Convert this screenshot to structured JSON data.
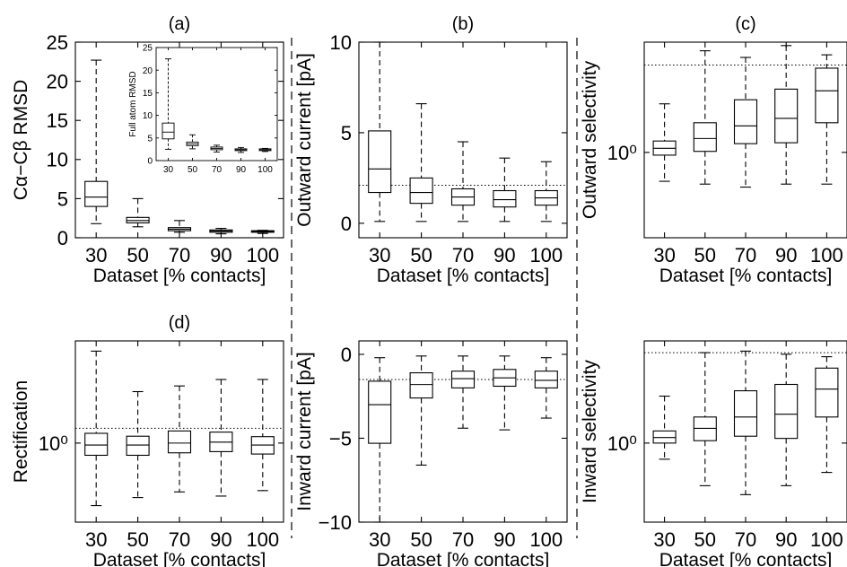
{
  "chart_data": [
    {
      "type": "box",
      "panel_label": "(a)",
      "xlabel": "Dataset [% contacts]",
      "ylabel": "Cα−Cβ RMSD",
      "categories": [
        "30",
        "50",
        "70",
        "90",
        "100"
      ],
      "ylim": [
        0,
        25
      ],
      "yticks": [
        0,
        5,
        10,
        15,
        20,
        25
      ],
      "boxes": [
        {
          "whislo": 1.8,
          "q1": 4.0,
          "med": 5.2,
          "q3": 7.2,
          "whishi": 22.7
        },
        {
          "whislo": 1.4,
          "q1": 1.9,
          "med": 2.2,
          "q3": 2.6,
          "whishi": 5.0
        },
        {
          "whislo": 0.7,
          "q1": 0.9,
          "med": 1.1,
          "q3": 1.3,
          "whishi": 2.2
        },
        {
          "whislo": 0.5,
          "q1": 0.7,
          "med": 0.85,
          "q3": 1.0,
          "whishi": 1.2
        },
        {
          "whislo": 0.55,
          "q1": 0.7,
          "med": 0.8,
          "q3": 0.9,
          "whishi": 0.95
        }
      ],
      "inset": {
        "ylabel": "Full atom RMSD",
        "categories": [
          "30",
          "50",
          "70",
          "90",
          "100"
        ],
        "ylim": [
          0,
          25
        ],
        "yticks": [
          0,
          5,
          10,
          15,
          20,
          25
        ],
        "boxes": [
          {
            "whislo": 2.5,
            "q1": 4.8,
            "med": 6.3,
            "q3": 8.3,
            "whishi": 22.5
          },
          {
            "whislo": 2.6,
            "q1": 3.3,
            "med": 3.7,
            "q3": 4.1,
            "whishi": 5.7
          },
          {
            "whislo": 1.9,
            "q1": 2.4,
            "med": 2.7,
            "q3": 3.0,
            "whishi": 3.4
          },
          {
            "whislo": 1.8,
            "q1": 2.2,
            "med": 2.4,
            "q3": 2.6,
            "whishi": 2.9
          },
          {
            "whislo": 2.0,
            "q1": 2.2,
            "med": 2.4,
            "q3": 2.6,
            "whishi": 2.7
          }
        ]
      }
    },
    {
      "type": "box",
      "panel_label": "(b)",
      "xlabel": "Dataset [% contacts]",
      "ylabel": "Outward current [pA]",
      "categories": [
        "30",
        "50",
        "70",
        "90",
        "100"
      ],
      "ylim": [
        -0.8,
        10
      ],
      "yticks": [
        0,
        5,
        10
      ],
      "reference_line": 2.1,
      "boxes": [
        {
          "whislo": 0.1,
          "q1": 1.7,
          "med": 3.0,
          "q3": 5.1,
          "whishi": 10.0
        },
        {
          "whislo": 0.1,
          "q1": 1.1,
          "med": 1.7,
          "q3": 2.5,
          "whishi": 6.6
        },
        {
          "whislo": 0.1,
          "q1": 1.0,
          "med": 1.45,
          "q3": 1.9,
          "whishi": 4.5
        },
        {
          "whislo": 0.1,
          "q1": 0.9,
          "med": 1.3,
          "q3": 1.8,
          "whishi": 3.6
        },
        {
          "whislo": 0.1,
          "q1": 1.0,
          "med": 1.4,
          "q3": 1.8,
          "whishi": 3.4
        }
      ]
    },
    {
      "type": "box",
      "panel_label": "(c)",
      "xlabel": "Dataset [% contacts]",
      "ylabel": "Outward selectivity",
      "yscale": "log",
      "categories": [
        "30",
        "50",
        "70",
        "90",
        "100"
      ],
      "ylim": [
        0.2,
        8
      ],
      "yticks": [
        1
      ],
      "yticklabels": [
        "10⁰"
      ],
      "reference_line": 5.2,
      "boxes": [
        {
          "whislo": 0.58,
          "q1": 0.95,
          "med": 1.08,
          "q3": 1.24,
          "whishi": 2.5
        },
        {
          "whislo": 0.55,
          "q1": 1.02,
          "med": 1.3,
          "q3": 1.75,
          "whishi": 6.8
        },
        {
          "whislo": 0.52,
          "q1": 1.18,
          "med": 1.65,
          "q3": 2.7,
          "whishi": 6.0
        },
        {
          "whislo": 0.55,
          "q1": 1.2,
          "med": 1.9,
          "q3": 3.3,
          "whishi": 7.5
        },
        {
          "whislo": 0.55,
          "q1": 1.75,
          "med": 3.2,
          "q3": 4.9,
          "whishi": 6.3
        }
      ]
    },
    {
      "type": "box",
      "panel_label": "(d)",
      "xlabel": "Dataset [% contacts]",
      "ylabel": "Rectification",
      "yscale": "log",
      "categories": [
        "30",
        "50",
        "70",
        "90",
        "100"
      ],
      "ylim": [
        0.2,
        8
      ],
      "yticks": [
        1
      ],
      "yticklabels": [
        "10⁰"
      ],
      "reference_line": 1.35,
      "boxes": [
        {
          "whislo": 0.28,
          "q1": 0.78,
          "med": 0.96,
          "q3": 1.22,
          "whishi": 6.5
        },
        {
          "whislo": 0.33,
          "q1": 0.78,
          "med": 0.96,
          "q3": 1.15,
          "whishi": 2.85
        },
        {
          "whislo": 0.37,
          "q1": 0.82,
          "med": 1.0,
          "q3": 1.28,
          "whishi": 3.2
        },
        {
          "whislo": 0.34,
          "q1": 0.84,
          "med": 1.02,
          "q3": 1.25,
          "whishi": 3.65
        },
        {
          "whislo": 0.38,
          "q1": 0.8,
          "med": 0.96,
          "q3": 1.14,
          "whishi": 3.65
        }
      ]
    },
    {
      "type": "box",
      "panel_label": "",
      "xlabel": "Dataset [% contacts]",
      "ylabel": "Inward current [pA]",
      "categories": [
        "30",
        "50",
        "70",
        "90",
        "100"
      ],
      "ylim": [
        -10,
        0.8
      ],
      "yticks": [
        -10,
        -5,
        0
      ],
      "reference_line": -1.5,
      "boxes": [
        {
          "whislo": -10.0,
          "q1": -5.3,
          "med": -3.0,
          "q3": -1.6,
          "whishi": -0.2
        },
        {
          "whislo": -6.6,
          "q1": -2.6,
          "med": -1.8,
          "q3": -1.1,
          "whishi": -0.1
        },
        {
          "whislo": -4.4,
          "q1": -2.0,
          "med": -1.45,
          "q3": -1.0,
          "whishi": -0.1
        },
        {
          "whislo": -4.5,
          "q1": -1.9,
          "med": -1.4,
          "q3": -0.9,
          "whishi": -0.1
        },
        {
          "whislo": -3.8,
          "q1": -2.0,
          "med": -1.55,
          "q3": -1.0,
          "whishi": -0.2
        }
      ]
    },
    {
      "type": "box",
      "panel_label": "",
      "xlabel": "Dataset [% contacts]",
      "ylabel": "Inward selectivity",
      "yscale": "log",
      "categories": [
        "30",
        "50",
        "70",
        "90",
        "100"
      ],
      "ylim": [
        0.2,
        8
      ],
      "yticks": [
        1
      ],
      "yticklabels": [
        "10⁰"
      ],
      "reference_line": 6.3,
      "boxes": [
        {
          "whislo": 0.72,
          "q1": 1.0,
          "med": 1.12,
          "q3": 1.28,
          "whishi": 2.6
        },
        {
          "whislo": 0.42,
          "q1": 1.05,
          "med": 1.35,
          "q3": 1.7,
          "whishi": 6.3
        },
        {
          "whislo": 0.35,
          "q1": 1.15,
          "med": 1.7,
          "q3": 2.9,
          "whishi": 6.5
        },
        {
          "whislo": 0.42,
          "q1": 1.1,
          "med": 1.8,
          "q3": 3.3,
          "whishi": 6.1
        },
        {
          "whislo": 0.55,
          "q1": 1.7,
          "med": 3.0,
          "q3": 4.6,
          "whishi": 5.8
        }
      ]
    }
  ]
}
